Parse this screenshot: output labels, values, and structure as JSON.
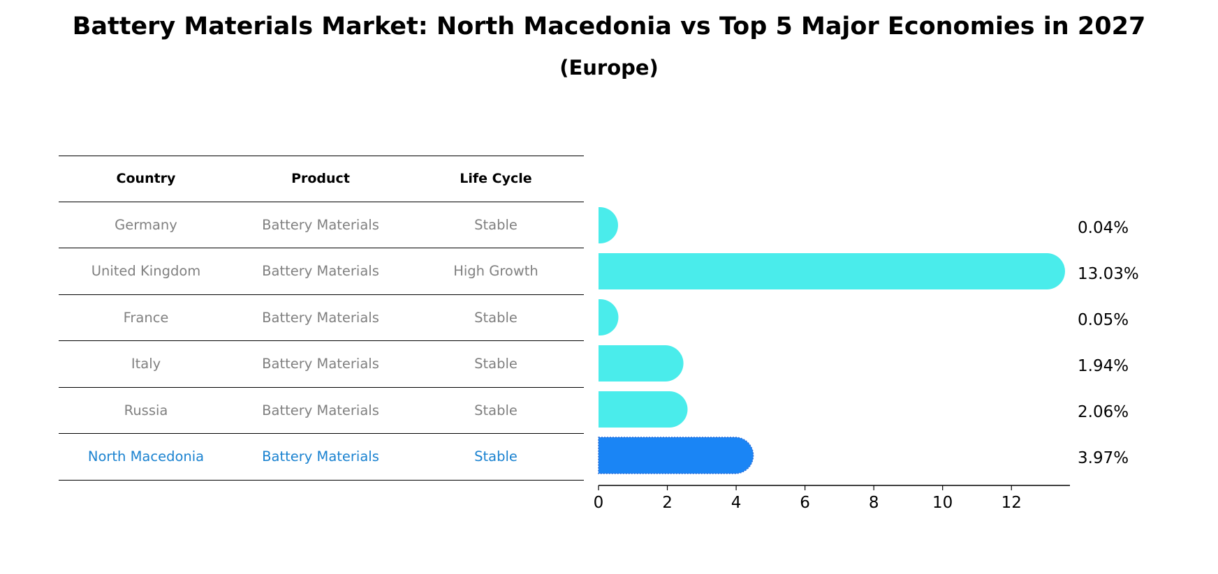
{
  "title": "Battery Materials Market: North Macedonia vs Top 5 Major Economies in 2027",
  "subtitle": "(Europe)",
  "table": {
    "headers": [
      "Country",
      "Product",
      "Life Cycle"
    ],
    "rows": [
      {
        "country": "Germany",
        "product": "Battery Materials",
        "life_cycle": "Stable"
      },
      {
        "country": "United Kingdom",
        "product": "Battery Materials",
        "life_cycle": "High Growth"
      },
      {
        "country": "France",
        "product": "Battery Materials",
        "life_cycle": "Stable"
      },
      {
        "country": "Italy",
        "product": "Battery Materials",
        "life_cycle": "Stable"
      },
      {
        "country": "Russia",
        "product": "Battery Materials",
        "life_cycle": "Stable"
      },
      {
        "country": "North Macedonia",
        "product": "Battery Materials",
        "life_cycle": "Stable"
      }
    ]
  },
  "colors": {
    "bar": "#4aeceb",
    "highlight_bar": "#1a85f5",
    "highlight_text": "#1a82d0",
    "muted_text": "#808080"
  },
  "chart_data": {
    "type": "bar",
    "orientation": "horizontal",
    "categories": [
      "Germany",
      "United Kingdom",
      "France",
      "Italy",
      "Russia",
      "North Macedonia"
    ],
    "values": [
      0.04,
      13.03,
      0.05,
      1.94,
      2.06,
      3.97
    ],
    "value_labels": [
      "0.04%",
      "13.03%",
      "0.05%",
      "1.94%",
      "2.06%",
      "3.97%"
    ],
    "highlight_index": 5,
    "xlim": [
      0,
      13.7
    ],
    "xticks": [
      0,
      2,
      4,
      6,
      8,
      10,
      12
    ],
    "title": "Battery Materials Market: North Macedonia vs Top 5 Major Economies in 2027",
    "xlabel": "",
    "ylabel": ""
  }
}
